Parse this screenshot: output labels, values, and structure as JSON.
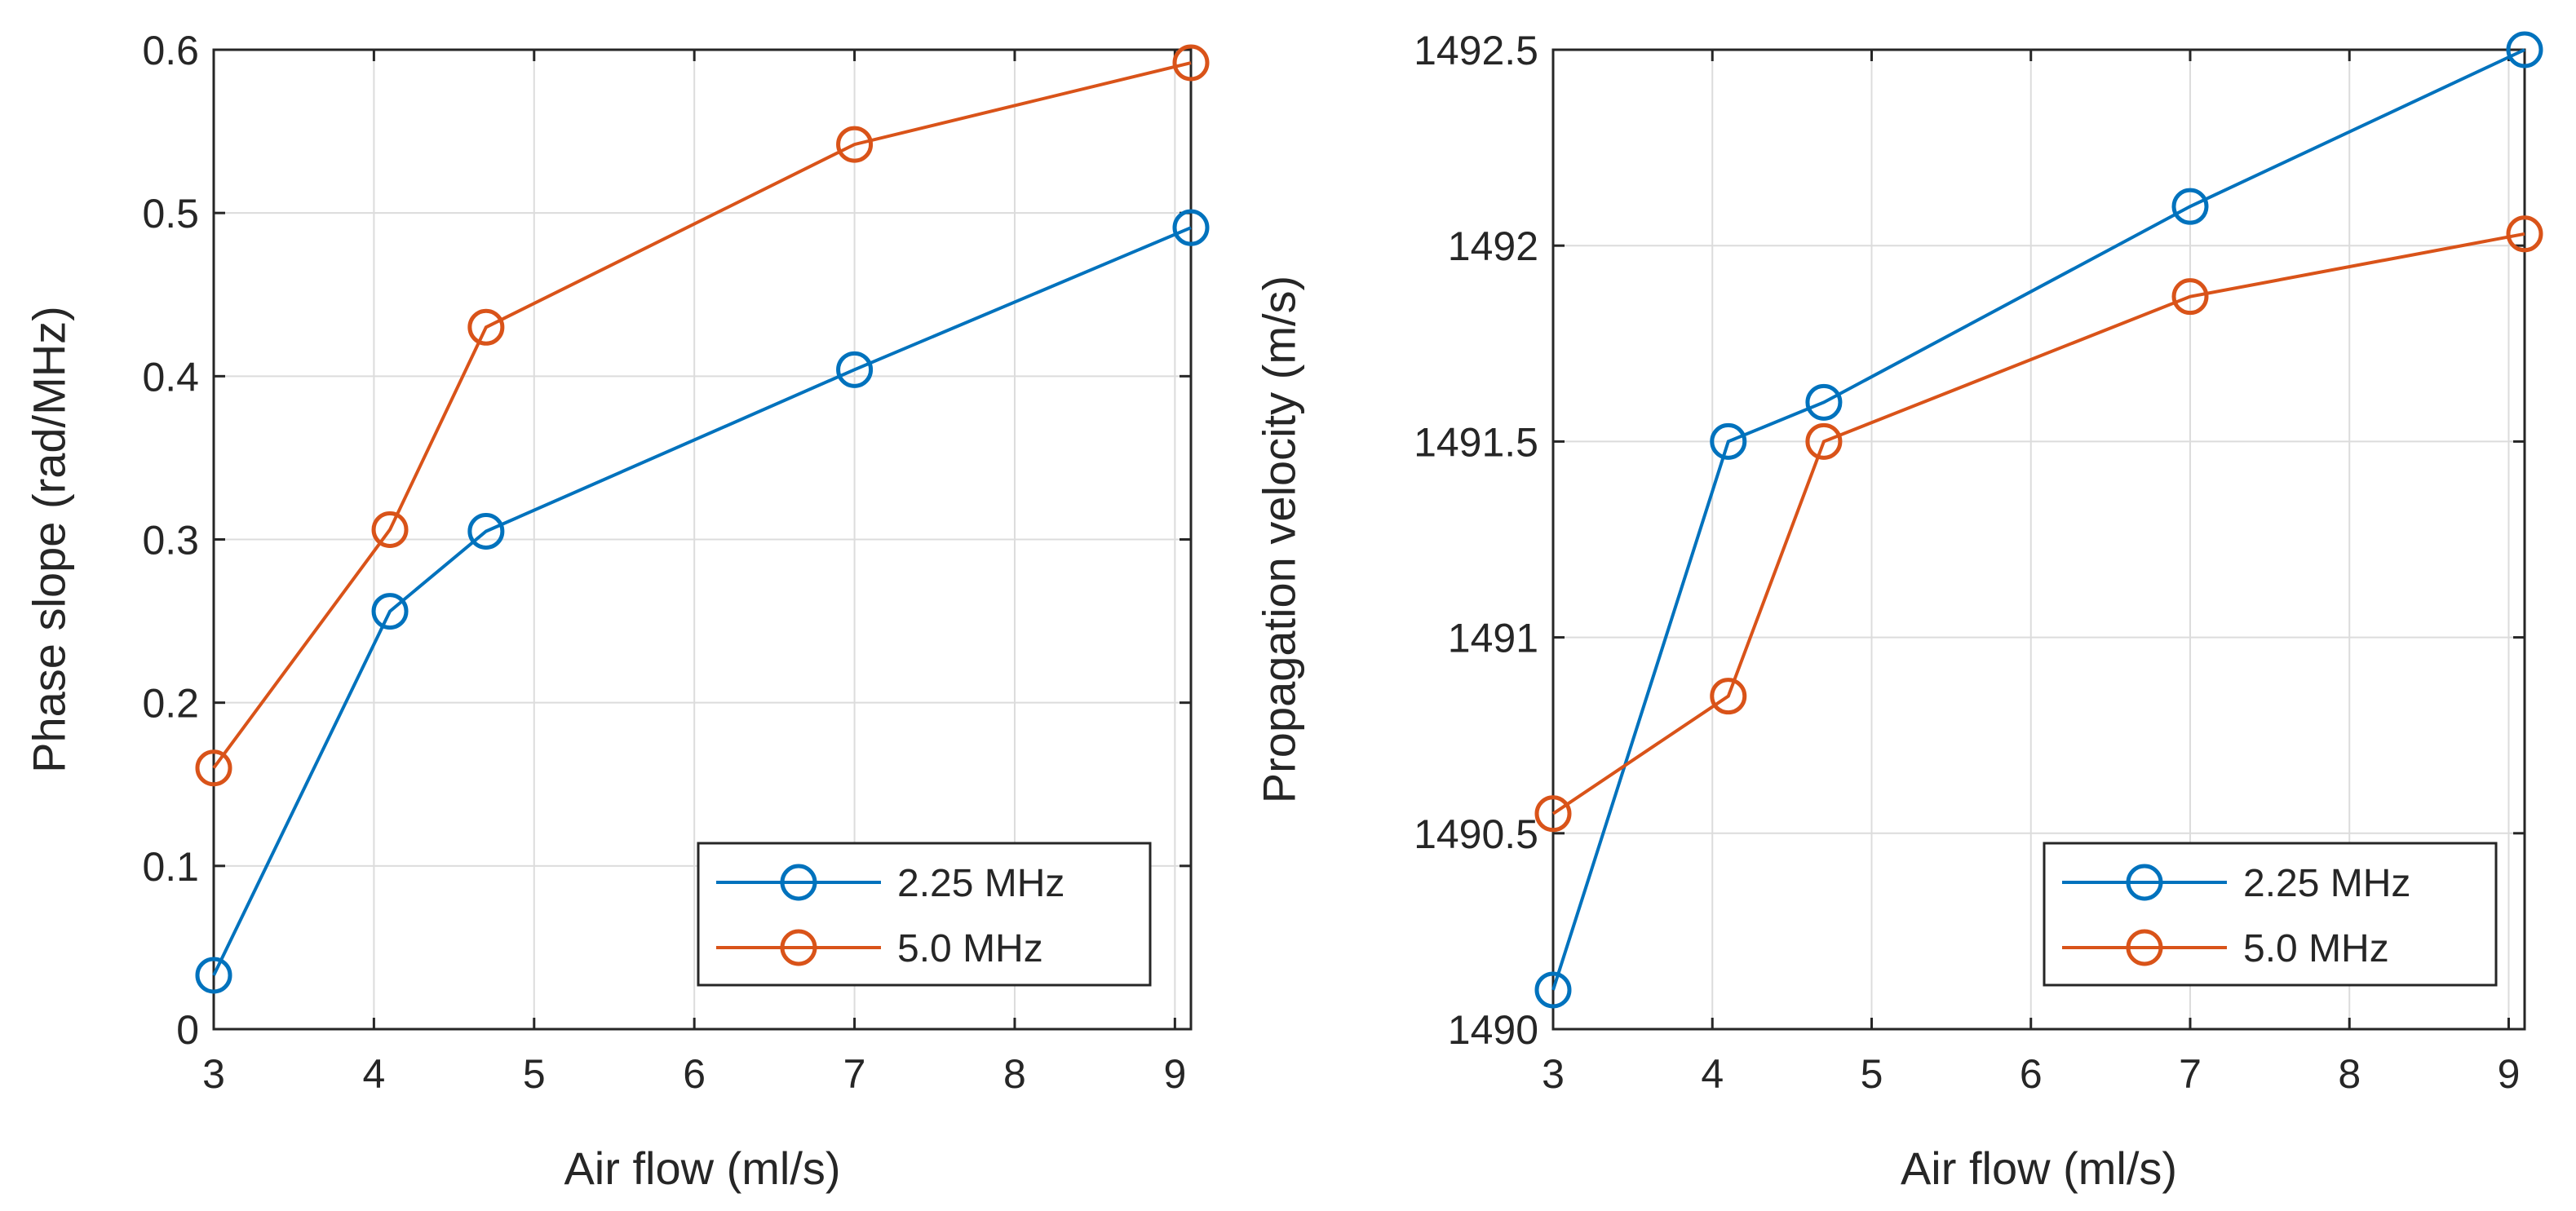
{
  "colors": {
    "series_1": "#0072BD",
    "series_2": "#D95319",
    "axis": "#262626",
    "grid": "#DCDCDC",
    "background": "#FFFFFF"
  },
  "chart_data": [
    {
      "type": "line",
      "title": "",
      "xlabel": "Air flow (ml/s)",
      "ylabel": "Phase slope (rad/MHz)",
      "xlim": [
        3,
        9.1
      ],
      "ylim": [
        0,
        0.6
      ],
      "xticks": [
        3,
        4,
        5,
        6,
        7,
        8,
        9
      ],
      "xtick_labels": [
        "3",
        "4",
        "5",
        "6",
        "7",
        "8",
        "9"
      ],
      "yticks": [
        0,
        0.1,
        0.2,
        0.3,
        0.4,
        0.5,
        0.6
      ],
      "ytick_labels": [
        "0",
        "0.1",
        "0.2",
        "0.3",
        "0.4",
        "0.5",
        "0.6"
      ],
      "grid": true,
      "legend_location": "bottom-right",
      "x": [
        3,
        4.1,
        4.7,
        7,
        9.1
      ],
      "series": [
        {
          "name": "2.25 MHz",
          "color": "#0072BD",
          "marker": "circle",
          "values": [
            0.033,
            0.256,
            0.305,
            0.404,
            0.491
          ]
        },
        {
          "name": "5.0 MHz",
          "color": "#D95319",
          "marker": "circle",
          "values": [
            0.16,
            0.306,
            0.43,
            0.542,
            0.592
          ]
        }
      ]
    },
    {
      "type": "line",
      "title": "",
      "xlabel": "Air flow (ml/s)",
      "ylabel": "Propagation velocity (m/s)",
      "xlim": [
        3,
        9.1
      ],
      "ylim": [
        1490,
        1492.5
      ],
      "xticks": [
        3,
        4,
        5,
        6,
        7,
        8,
        9
      ],
      "xtick_labels": [
        "3",
        "4",
        "5",
        "6",
        "7",
        "8",
        "9"
      ],
      "yticks": [
        1490,
        1490.5,
        1491,
        1491.5,
        1492,
        1492.5
      ],
      "ytick_labels": [
        "1490",
        "1490.5",
        "1491",
        "1491.5",
        "1492",
        "1492.5"
      ],
      "grid": true,
      "legend_location": "bottom-right",
      "x": [
        3,
        4.1,
        4.7,
        7,
        9.1
      ],
      "series": [
        {
          "name": "2.25 MHz",
          "color": "#0072BD",
          "marker": "circle",
          "values": [
            1490.1,
            1491.5,
            1491.6,
            1492.1,
            1492.5
          ]
        },
        {
          "name": "5.0 MHz",
          "color": "#D95319",
          "marker": "circle",
          "values": [
            1490.55,
            1490.85,
            1491.5,
            1491.87,
            1492.03
          ]
        }
      ]
    }
  ]
}
